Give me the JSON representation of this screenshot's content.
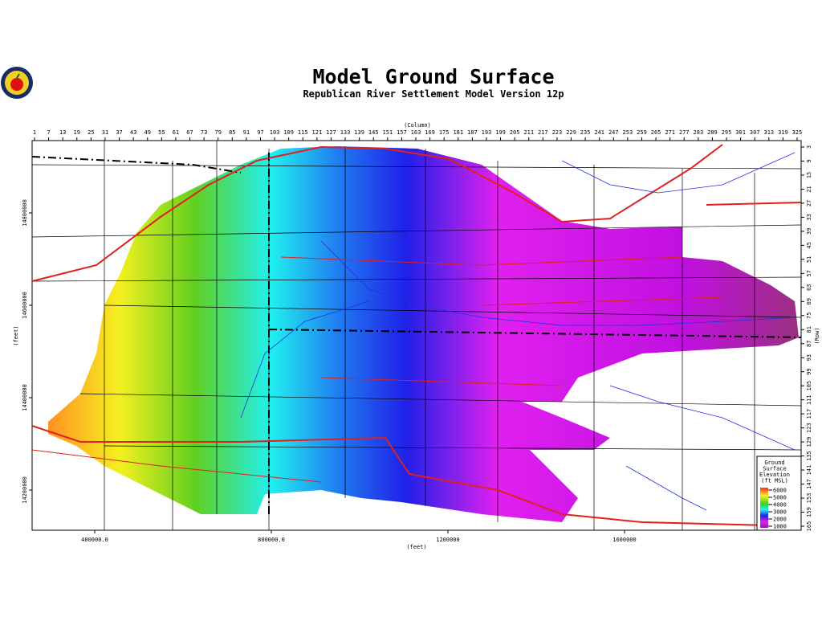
{
  "map": {
    "title": "Model Ground Surface",
    "subtitle": "Republican River Settlement Model Version 12p",
    "top_axis": {
      "label": "(Column)",
      "ticks": [
        1,
        7,
        13,
        19,
        25,
        31,
        37,
        43,
        49,
        55,
        61,
        67,
        73,
        79,
        85,
        91,
        97,
        103,
        109,
        115,
        121,
        127,
        133,
        139,
        145,
        151,
        157,
        163,
        169,
        175,
        181,
        187,
        193,
        199,
        205,
        211,
        217,
        223,
        229,
        235,
        241,
        247,
        253,
        259,
        265,
        271,
        277,
        283,
        289,
        295,
        301,
        307,
        313,
        319,
        325
      ]
    },
    "right_axis": {
      "label": "(Row)",
      "ticks": [
        3,
        9,
        15,
        21,
        27,
        33,
        39,
        45,
        51,
        57,
        63,
        69,
        75,
        81,
        87,
        93,
        99,
        105,
        111,
        117,
        123,
        129,
        135,
        141,
        147,
        153,
        159,
        165
      ]
    },
    "left_axis": {
      "label": "(feet)",
      "ticks": [
        14800000,
        14600000,
        14400000,
        14200000
      ]
    },
    "bottom_axis": {
      "label": "(feet)",
      "ticks": [
        {
          "value": 400000,
          "label": "400000.0"
        },
        {
          "value": 800000,
          "label": "800000.0"
        },
        1200000,
        1600000
      ]
    },
    "legend": {
      "title": [
        "Ground",
        "Surface",
        "Elevation",
        "(ft  MSL)"
      ],
      "items": [
        6000,
        5000,
        4000,
        3000,
        2000,
        1000
      ]
    }
  }
}
